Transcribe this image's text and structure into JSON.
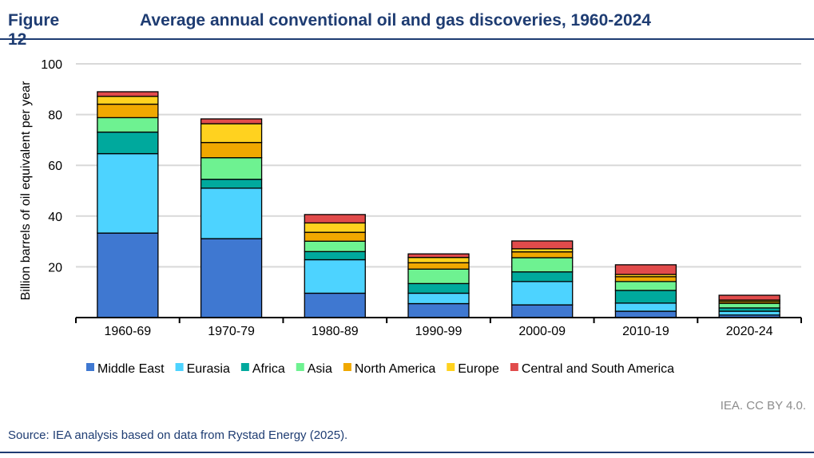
{
  "figure_label": "Figure 12",
  "credit": "IEA. CC BY 4.0.",
  "source": "Source: IEA analysis based on data from Rystad Energy (2025).",
  "chart_data": {
    "type": "bar",
    "stacked": true,
    "title": "Average annual conventional oil and gas discoveries, 1960-2024",
    "xlabel": "",
    "ylabel": "Billion barrels of oil equivalent per year",
    "ylim": [
      0,
      100
    ],
    "yticks": [
      20,
      40,
      60,
      80,
      100
    ],
    "grid": true,
    "legend": "bottom",
    "categories": [
      "1960-69",
      "1970-79",
      "1980-89",
      "1990-99",
      "2000-09",
      "2010-19",
      "2020-24"
    ],
    "series": [
      {
        "name": "Middle East",
        "color": "#3f78d1",
        "values": [
          33.3,
          31.1,
          9.6,
          5.5,
          5.0,
          2.5,
          1.0
        ]
      },
      {
        "name": "Eurasia",
        "color": "#4dd3ff",
        "values": [
          31.3,
          19.9,
          13.2,
          4.1,
          9.2,
          3.2,
          1.5
        ]
      },
      {
        "name": "Africa",
        "color": "#00a99d",
        "values": [
          8.5,
          3.5,
          3.2,
          3.8,
          3.8,
          5.0,
          1.3
        ]
      },
      {
        "name": "Asia",
        "color": "#6ef291",
        "values": [
          5.7,
          8.5,
          4.1,
          5.7,
          5.6,
          3.5,
          1.8
        ]
      },
      {
        "name": "North America",
        "color": "#f0a800",
        "values": [
          5.3,
          6.0,
          3.5,
          2.5,
          2.3,
          1.9,
          0.7
        ]
      },
      {
        "name": "Europe",
        "color": "#ffd21f",
        "values": [
          3.1,
          7.4,
          3.7,
          2.1,
          1.2,
          0.9,
          0.6
        ]
      },
      {
        "name": "Central and South America",
        "color": "#e14b4b",
        "values": [
          1.8,
          1.9,
          3.3,
          1.4,
          3.1,
          3.8,
          1.9
        ]
      }
    ]
  }
}
